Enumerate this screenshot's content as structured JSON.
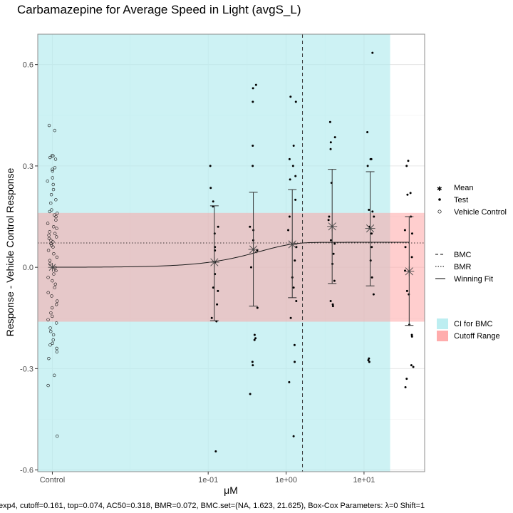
{
  "chart_data": {
    "type": "scatter",
    "title": "Carbamazepine for Average Speed in Light (avgS_L)",
    "xlabel": "μM",
    "ylabel": "Response - Vehicle Control Response",
    "x_scale": "log10",
    "x_tick_labels": [
      "Control",
      "1e-01",
      "1e+00",
      "1e+01"
    ],
    "x_tick_values": [
      0.001,
      0.1,
      1,
      10
    ],
    "y_ticks": [
      -0.6,
      -0.3,
      0.0,
      0.3,
      0.6
    ],
    "y_tick_labels": [
      "-0.6",
      "-0.3",
      "0.0",
      "0.3",
      "0.6"
    ],
    "xlim": [
      0.00065,
      60
    ],
    "ylim": [
      -0.605,
      0.69
    ],
    "grid": true,
    "legend_position": "right",
    "caption": "exp4, cutoff=0.161, top=0.074, AC50=0.318, BMR=0.072, BMC.set=(NA, 1.623, 21.625), Box-Cox Parameters: λ=0 Shift=1",
    "colors": {
      "ci_band": "#b2ebee",
      "cutoff_band": "#ff9e9e",
      "points": "#000000",
      "mean": "#444444",
      "panel_border": "#8c8c8c"
    },
    "ci_for_bmc": [
      0.00065,
      21.625
    ],
    "bmc": 1.623,
    "bmr": 0.072,
    "cutoff": 0.161,
    "fit": {
      "model": "exp4",
      "top": 0.074,
      "ac50": 0.318
    },
    "legend": {
      "shapes": [
        {
          "label": "Mean",
          "symbol": "asterisk"
        },
        {
          "label": "Test",
          "symbol": "filled-circle"
        },
        {
          "label": "Vehicle Control",
          "symbol": "open-circle"
        }
      ],
      "lines": [
        {
          "label": "BMC",
          "style": "dashed"
        },
        {
          "label": "BMR",
          "style": "dotted"
        },
        {
          "label": "Winning Fit",
          "style": "solid"
        }
      ],
      "fills": [
        {
          "label": "CI for BMC",
          "color": "#b2ebee"
        },
        {
          "label": "Cutoff Range",
          "color": "#ff9e9e"
        }
      ]
    },
    "dose_groups": [
      {
        "dose": 0.12,
        "mean": 0.015,
        "lower": -0.158,
        "upper": 0.182
      },
      {
        "dose": 0.38,
        "mean": 0.053,
        "lower": -0.115,
        "upper": 0.222
      },
      {
        "dose": 1.2,
        "mean": 0.068,
        "lower": -0.09,
        "upper": 0.23
      },
      {
        "dose": 3.9,
        "mean": 0.121,
        "lower": -0.048,
        "upper": 0.29
      },
      {
        "dose": 12,
        "mean": 0.115,
        "lower": -0.055,
        "upper": 0.283
      },
      {
        "dose": 38,
        "mean": -0.012,
        "lower": -0.172,
        "upper": 0.15
      }
    ],
    "vehicle_control_values": [
      0.42,
      0.405,
      0.33,
      0.33,
      0.325,
      0.32,
      0.295,
      0.29,
      0.285,
      0.265,
      0.255,
      0.245,
      0.23,
      0.215,
      0.2,
      0.19,
      0.17,
      0.165,
      0.16,
      0.155,
      0.15,
      0.14,
      0.13,
      0.12,
      0.115,
      0.105,
      0.1,
      0.095,
      0.09,
      0.085,
      0.08,
      0.075,
      0.07,
      0.065,
      0.06,
      0.05,
      0.04,
      0.03,
      0.02,
      0.01,
      0.0,
      -0.01,
      -0.02,
      -0.03,
      -0.04,
      -0.05,
      -0.06,
      -0.075,
      -0.085,
      -0.1,
      -0.11,
      -0.12,
      -0.135,
      -0.145,
      -0.155,
      -0.165,
      -0.18,
      -0.19,
      -0.2,
      -0.215,
      -0.225,
      -0.23,
      -0.24,
      -0.25,
      -0.27,
      -0.32,
      -0.35,
      -0.5
    ],
    "test_points": [
      {
        "dose": 0.12,
        "values": [
          0.3,
          0.235,
          0.195,
          0.18,
          0.12,
          0.1,
          0.06,
          0.05,
          0.015,
          -0.02,
          -0.06,
          -0.07,
          -0.11,
          -0.15,
          -0.16,
          -0.545
        ]
      },
      {
        "dose": 0.38,
        "values": [
          0.54,
          0.53,
          0.49,
          0.36,
          0.3,
          0.12,
          0.11,
          0.08,
          0.05,
          0.0,
          -0.12,
          -0.2,
          -0.21,
          -0.215,
          -0.28,
          -0.29,
          -0.375
        ]
      },
      {
        "dose": 1.2,
        "values": [
          0.505,
          0.49,
          0.36,
          0.32,
          0.3,
          0.27,
          0.26,
          0.2,
          0.15,
          0.11,
          0.06,
          0.02,
          -0.03,
          -0.06,
          -0.1,
          -0.15,
          -0.23,
          -0.28,
          -0.34,
          -0.5
        ]
      },
      {
        "dose": 3.9,
        "values": [
          0.43,
          0.385,
          0.37,
          0.35,
          0.25,
          0.15,
          0.14,
          0.08,
          0.07,
          0.04,
          0.01,
          -0.04,
          -0.1,
          -0.11,
          -0.115
        ]
      },
      {
        "dose": 12,
        "values": [
          0.635,
          0.4,
          0.32,
          0.32,
          0.3,
          0.17,
          0.165,
          0.15,
          0.12,
          0.1,
          0.06,
          0.02,
          -0.03,
          -0.08,
          -0.27,
          -0.275,
          -0.28
        ]
      },
      {
        "dose": 38,
        "values": [
          0.315,
          0.3,
          0.22,
          0.215,
          0.15,
          0.11,
          0.1,
          0.06,
          0.03,
          -0.01,
          -0.07,
          -0.08,
          -0.17,
          -0.2,
          -0.205,
          -0.29,
          -0.295,
          -0.33,
          -0.355
        ]
      }
    ]
  }
}
